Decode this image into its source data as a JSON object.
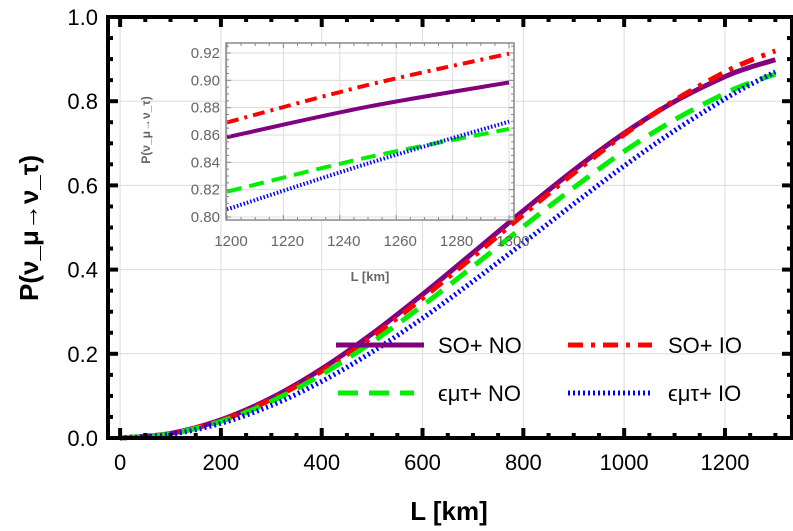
{
  "chart_data": [
    {
      "type": "line",
      "title": "",
      "xlabel": "L [km]",
      "ylabel": "P(ν_μ→ν_τ)",
      "xlim": [
        -24,
        1333
      ],
      "ylim": [
        0,
        1.0
      ],
      "xticks": [
        0,
        200,
        400,
        600,
        800,
        1000,
        1200
      ],
      "yticks": [
        0.0,
        0.2,
        0.4,
        0.6,
        0.8,
        1.0
      ],
      "xtick_labels": [
        "0",
        "200",
        "400",
        "600",
        "800",
        "1000",
        "1200"
      ],
      "ytick_labels": [
        "0.0",
        "0.2",
        "0.4",
        "0.6",
        "0.8",
        "1.0"
      ],
      "grid": true,
      "legend_placement": "bottom-right",
      "x": [
        0,
        100,
        200,
        300,
        400,
        500,
        600,
        700,
        800,
        900,
        1000,
        1100,
        1200,
        1250,
        1300
      ],
      "series": [
        {
          "name": "SO+ NO",
          "color": "#800080",
          "style": "solid",
          "values": [
            0,
            0.0109,
            0.0431,
            0.095,
            0.1643,
            0.2476,
            0.341,
            0.4399,
            0.5399,
            0.636,
            0.7239,
            0.7991,
            0.8584,
            0.8807,
            0.8984
          ]
        },
        {
          "name": "SO+ IO",
          "color": "#ff0000",
          "style": "dash-dot",
          "values": [
            0,
            0.0105,
            0.0415,
            0.0918,
            0.1589,
            0.2403,
            0.332,
            0.4302,
            0.5307,
            0.629,
            0.7208,
            0.802,
            0.8692,
            0.8966,
            0.9195
          ]
        },
        {
          "name": "ϵμτ+ NO",
          "color": "#00ee00",
          "style": "dashed",
          "values": [
            0,
            0.01,
            0.0394,
            0.087,
            0.1508,
            0.2277,
            0.3145,
            0.4073,
            0.5022,
            0.5946,
            0.6809,
            0.7558,
            0.8185,
            0.8437,
            0.8644
          ]
        },
        {
          "name": "ϵμτ+ IO",
          "color": "#0000ff",
          "style": "dotted",
          "values": [
            0,
            0.0088,
            0.0349,
            0.0773,
            0.1345,
            0.2044,
            0.2846,
            0.3721,
            0.4635,
            0.556,
            0.6462,
            0.7302,
            0.8056,
            0.8392,
            0.8698
          ]
        }
      ]
    },
    {
      "type": "line",
      "title": "",
      "xlabel": "L [km]",
      "ylabel": "P(ν_μ→ν_τ)",
      "xlim": [
        1200,
        1305
      ],
      "ylim": [
        0.797,
        0.93
      ],
      "xticks": [
        1200,
        1220,
        1240,
        1260,
        1280,
        1300
      ],
      "yticks": [
        0.8,
        0.82,
        0.84,
        0.86,
        0.88,
        0.9,
        0.92
      ],
      "xtick_labels": [
        "1200",
        "1220",
        "1240",
        "1260",
        "1280",
        "1300"
      ],
      "ytick_labels": [
        "0.80",
        "0.82",
        "0.84",
        "0.86",
        "0.88",
        "0.90",
        "0.92"
      ],
      "grid": true,
      "note_region": "inset",
      "x": [
        1200,
        1250,
        1300
      ],
      "series": [
        {
          "color": "#800080",
          "style": "solid",
          "values": [
            0.8584,
            0.8807,
            0.8984
          ]
        },
        {
          "color": "#ff0000",
          "style": "dash-dot",
          "values": [
            0.8692,
            0.8966,
            0.9195
          ]
        },
        {
          "color": "#00ee00",
          "style": "dashed",
          "values": [
            0.8185,
            0.8437,
            0.8644
          ]
        },
        {
          "color": "#0000ff",
          "style": "dotted",
          "values": [
            0.8056,
            0.8392,
            0.8698
          ]
        }
      ]
    }
  ]
}
